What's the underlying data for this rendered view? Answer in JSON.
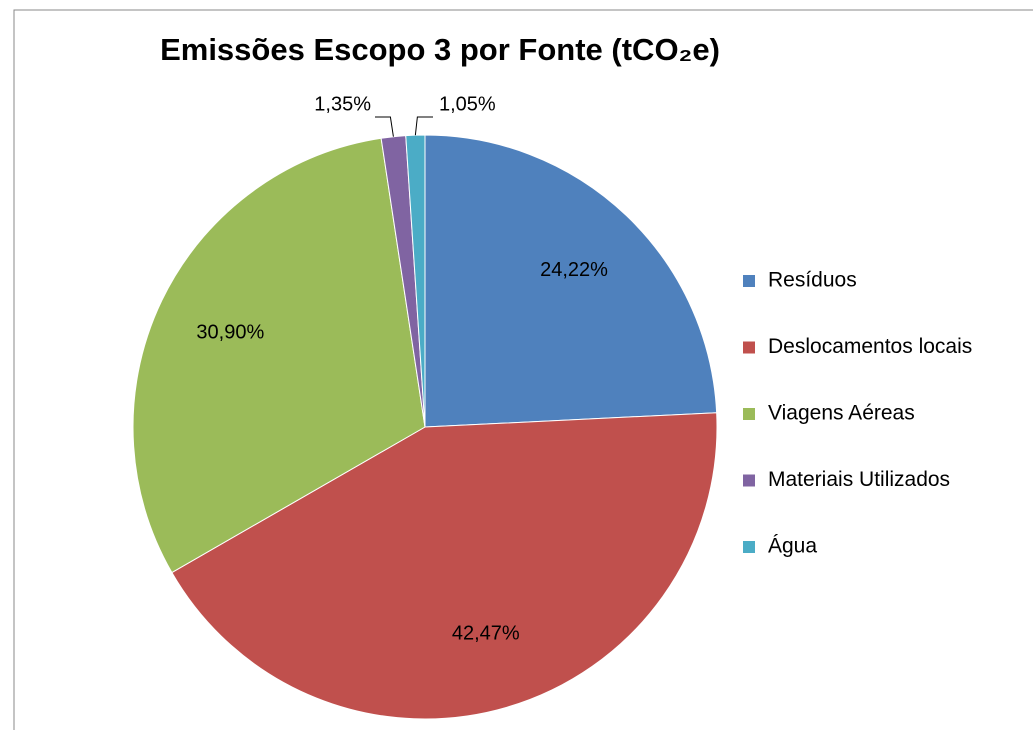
{
  "chart_data": {
    "type": "pie",
    "title": "Emissões Escopo 3 por Fonte (tCO₂e)",
    "categories": [
      "Resíduos",
      "Deslocamentos locais",
      "Viagens Aéreas",
      "Materiais Utilizados",
      "Água"
    ],
    "values": [
      24.22,
      42.47,
      30.9,
      1.35,
      1.05
    ],
    "value_labels": [
      "24,22%",
      "42,47%",
      "30,90%",
      "1,35%",
      "1,05%"
    ],
    "colors": [
      "#4f81bd",
      "#c0504d",
      "#9bbb59",
      "#8064a2",
      "#4bacc6"
    ],
    "legend": "right"
  }
}
